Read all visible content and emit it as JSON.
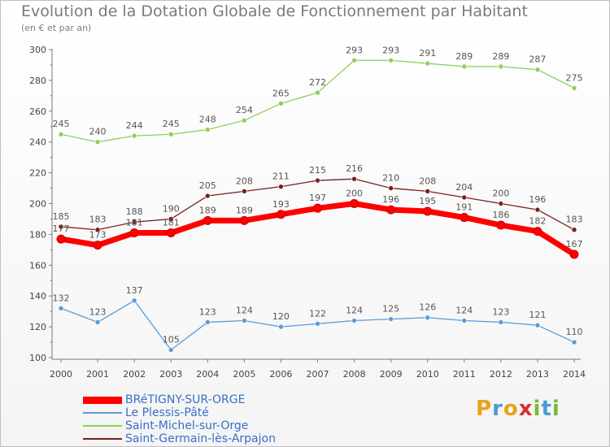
{
  "title": "Evolution de la Dotation Globale de Fonctionnement par Habitant",
  "subtitle": "(en € et par an)",
  "logo": {
    "letters": [
      "P",
      "r",
      "o",
      "x",
      "i",
      "t",
      "i"
    ],
    "colors": [
      "#e8a21b",
      "#4a9ad6",
      "#e8a21b",
      "#d6322f",
      "#7ab83b",
      "#4a9ad6",
      "#7ab83b"
    ]
  },
  "chart_data": {
    "type": "line",
    "title": "Evolution de la Dotation Globale de Fonctionnement par Habitant",
    "subtitle": "(en € et par an)",
    "xlabel": "",
    "ylabel": "",
    "x": [
      "2000",
      "2001",
      "2002",
      "2003",
      "2004",
      "2005",
      "2006",
      "2007",
      "2008",
      "2009",
      "2010",
      "2011",
      "2012",
      "2013",
      "2014"
    ],
    "ylim": [
      100,
      300
    ],
    "yticks": [
      100,
      120,
      140,
      160,
      180,
      200,
      220,
      240,
      260,
      280,
      300
    ],
    "grid": false,
    "legend_position": "bottom-left",
    "series": [
      {
        "name": "BRéTIGNY-SUR-ORGE",
        "color": "#ff0000",
        "labelColor": "#555555",
        "width": "thick",
        "values": [
          177,
          173,
          181,
          181,
          189,
          189,
          193,
          197,
          200,
          196,
          195,
          191,
          186,
          182,
          167
        ]
      },
      {
        "name": "Le Plessis-Pâté",
        "color": "#5b9bd5",
        "labelColor": "#555555",
        "width": "thin",
        "values": [
          132,
          123,
          137,
          105,
          123,
          124,
          120,
          122,
          124,
          125,
          126,
          124,
          123,
          121,
          110
        ]
      },
      {
        "name": "Saint-Michel-sur-Orge",
        "color": "#8ed05a",
        "labelColor": "#555555",
        "width": "thin",
        "values": [
          245,
          240,
          244,
          245,
          248,
          254,
          265,
          272,
          293,
          293,
          291,
          289,
          289,
          287,
          275
        ]
      },
      {
        "name": "Saint-Germain-lès-Arpajon",
        "color": "#7a1f1f",
        "labelColor": "#555555",
        "width": "thin",
        "values": [
          185,
          183,
          188,
          190,
          205,
          208,
          211,
          215,
          216,
          210,
          208,
          204,
          200,
          196,
          183
        ]
      }
    ]
  }
}
